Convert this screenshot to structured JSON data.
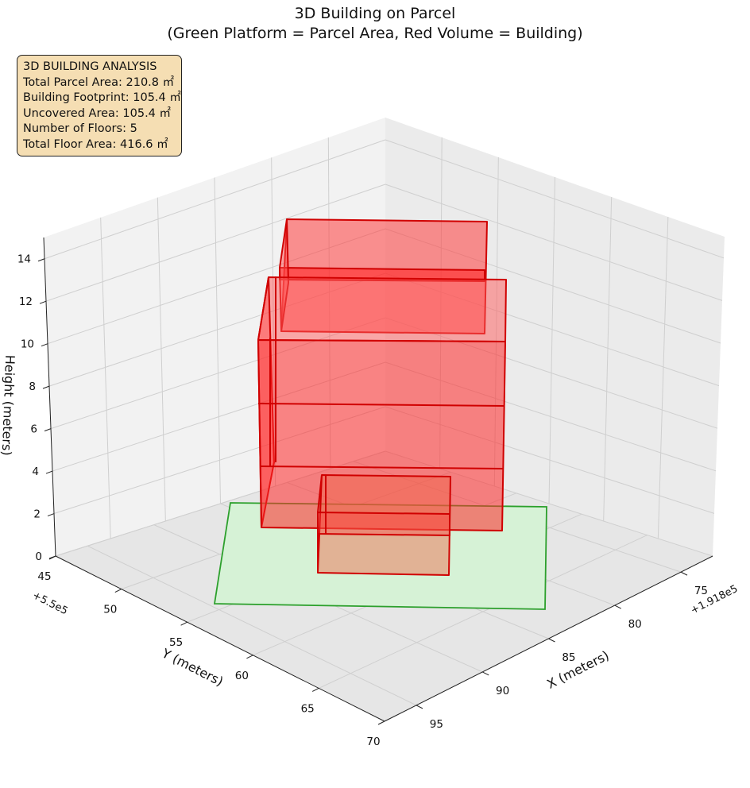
{
  "title": {
    "line1": "3D Building on Parcel",
    "line2": "(Green Platform = Parcel Area, Red Volume = Building)"
  },
  "info_box": {
    "heading": "3D BUILDING ANALYSIS",
    "lines": [
      "Total Parcel Area: 210.8 ㎡",
      "Building Footprint: 105.4 ㎡",
      "Uncovered Area: 105.4 ㎡",
      "Number of Floors: 5",
      "Total Floor Area: 416.6 ㎡"
    ]
  },
  "chart_data": {
    "type": "3d-volume",
    "x_axis": {
      "label": "X (meters)",
      "ticks": [
        "75",
        "80",
        "85",
        "90",
        "95"
      ],
      "offset_text": "+1.918e5"
    },
    "y_axis": {
      "label": "Y (meters)",
      "ticks": [
        "45",
        "50",
        "55",
        "60",
        "65",
        "70"
      ],
      "offset_text": "+5.5e5"
    },
    "z_axis": {
      "label": "Height (meters)",
      "ticks": [
        "0",
        "2",
        "4",
        "6",
        "8",
        "10",
        "12",
        "14"
      ]
    },
    "colors": {
      "parcel": "#2ca02c",
      "parcel_fill": "#d6f2d6",
      "building": "#ff0000",
      "building_edge": "#cc0000"
    },
    "parcel_area_m2": 210.8,
    "building_footprint_m2": 105.4,
    "uncovered_area_m2": 105.4,
    "floors": 5,
    "total_floor_area_m2": 416.6,
    "grid": true
  }
}
